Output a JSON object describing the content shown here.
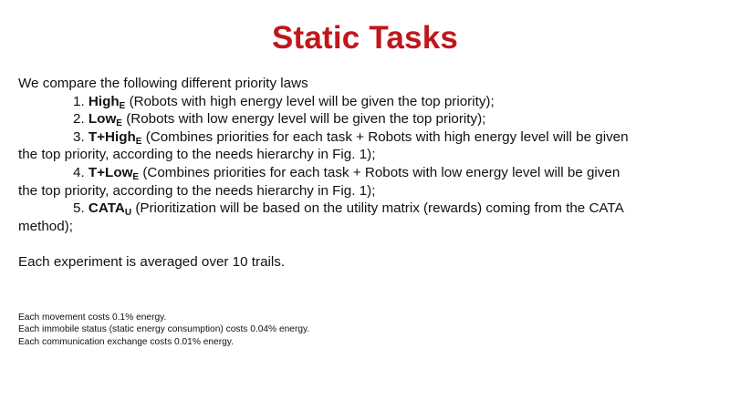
{
  "title": "Static Tasks",
  "intro": "We compare the following different priority laws",
  "items": [
    {
      "num": "1.",
      "name": "High",
      "sub": "E",
      "desc_first": "(Robots with high energy level will be given the top priority);",
      "desc_second": ""
    },
    {
      "num": "2.",
      "name": "Low",
      "sub": "E",
      "desc_first": "(Robots with low energy level will be given the top priority);",
      "desc_second": ""
    },
    {
      "num": "3.",
      "name": "T+High",
      "sub": "E",
      "desc_first": "(Combines priorities for each task + Robots with high energy level will be given",
      "desc_second": "the top priority, according to the needs hierarchy in Fig. 1);"
    },
    {
      "num": "4.",
      "name": "T+Low",
      "sub": "E",
      "desc_first": "(Combines priorities for each task + Robots with low energy level will be given",
      "desc_second": "the top priority, according to the needs hierarchy in Fig. 1);"
    },
    {
      "num": "5.",
      "name": "CATA",
      "sub": "U",
      "desc_first": "(Prioritization will be based on the utility matrix (rewards) coming from the CATA",
      "desc_second": "method);"
    }
  ],
  "summary": "Each experiment is averaged over 10 trails.",
  "notes": [
    "Each movement costs 0.1% energy.",
    "Each immobile status (static energy consumption) costs 0.04% energy.",
    "Each communication exchange costs 0.01% energy."
  ],
  "colors": {
    "title": "#c0171b",
    "text": "#111111",
    "background": "#ffffff"
  }
}
